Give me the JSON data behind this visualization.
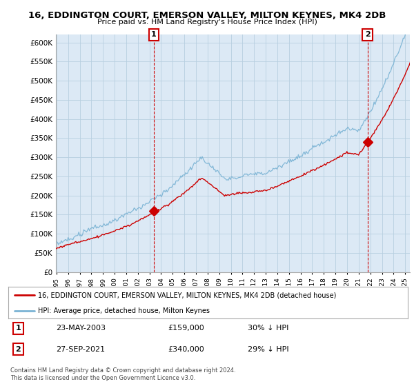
{
  "title": "16, EDDINGTON COURT, EMERSON VALLEY, MILTON KEYNES, MK4 2DB",
  "subtitle": "Price paid vs. HM Land Registry's House Price Index (HPI)",
  "ylim": [
    0,
    620000
  ],
  "yticks": [
    0,
    50000,
    100000,
    150000,
    200000,
    250000,
    300000,
    350000,
    400000,
    450000,
    500000,
    550000,
    600000
  ],
  "hpi_color": "#7ab3d4",
  "price_color": "#cc0000",
  "background_color": "#ffffff",
  "plot_bg_color": "#dce9f5",
  "grid_color": "#b8cfe0",
  "sale1": {
    "year": 2003.375,
    "price": 159000,
    "label": "1",
    "date_str": "23-MAY-2003",
    "pct": "30% ↓ HPI"
  },
  "sale2": {
    "year": 2021.75,
    "price": 340000,
    "label": "2",
    "date_str": "27-SEP-2021",
    "pct": "29% ↓ HPI"
  },
  "legend_house": "16, EDDINGTON COURT, EMERSON VALLEY, MILTON KEYNES, MK4 2DB (detached house)",
  "legend_hpi": "HPI: Average price, detached house, Milton Keynes",
  "footnote": "Contains HM Land Registry data © Crown copyright and database right 2024.\nThis data is licensed under the Open Government Licence v3.0."
}
